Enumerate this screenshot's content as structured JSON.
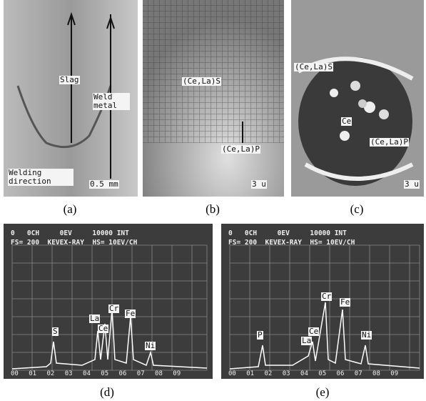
{
  "panels": [
    {
      "caption": "(a)",
      "labels": [
        "Slag",
        "Weld metal",
        "Welding direction",
        "0.5 mm"
      ]
    },
    {
      "caption": "(b)",
      "labels": [
        "(Ce,La)S",
        "(Ce,La)P",
        "3 u"
      ]
    },
    {
      "caption": "(c)",
      "labels": [
        "(Ce,La)S",
        "Ce",
        "(Ce,La)P",
        "3 u"
      ]
    },
    {
      "caption": "(d)",
      "header": [
        "0   0CH     0EV     10000 INT",
        "FS= 200  KEVEX-RAY  HS= 10EV/CH"
      ],
      "axis": "00 01 02 03 04 05 06 07 08 09",
      "labels": [
        "S",
        "La",
        "Ce",
        "Cr",
        "Fe",
        "Ni"
      ]
    },
    {
      "caption": "(e)",
      "header": [
        "0   0CH     0EV     10000 INT",
        "FS= 200  KEVEX-RAY  HS= 10EV/CH"
      ],
      "axis": "00 01 02 03 04 05 06 07 08 09",
      "labels": [
        "P",
        "Ce",
        "La",
        "Cr",
        "Fe",
        "Ni"
      ]
    }
  ]
}
